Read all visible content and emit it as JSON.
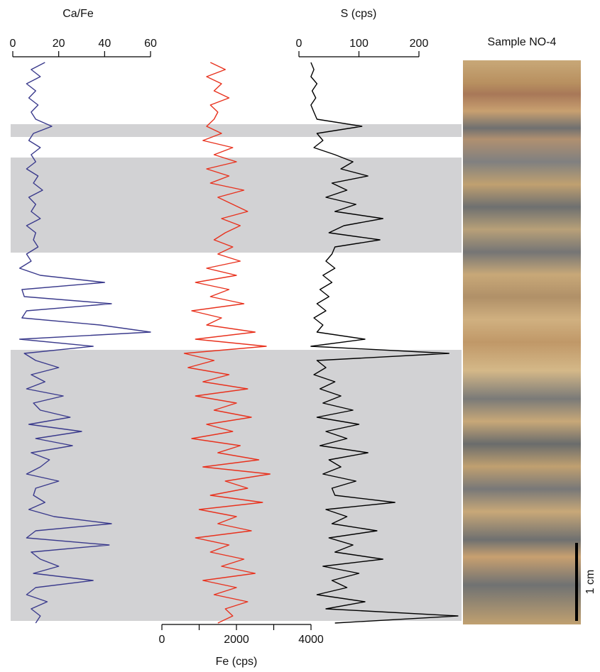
{
  "chart_data": {
    "type": "line",
    "series": [
      {
        "name": "Ca/Fe",
        "color": "#3a3a8c",
        "xlim": [
          0,
          60
        ],
        "xticks": [
          0,
          20,
          40,
          60
        ],
        "values": [
          14,
          8,
          12,
          6,
          10,
          7,
          11,
          8,
          10,
          17,
          9,
          7,
          12,
          8,
          10,
          6,
          11,
          9,
          13,
          7,
          10,
          8,
          12,
          6,
          10,
          9,
          11,
          6,
          8,
          3,
          12,
          40,
          4,
          5,
          43,
          6,
          4,
          38,
          60,
          3,
          35,
          5,
          10,
          20,
          8,
          14,
          6,
          22,
          9,
          12,
          25,
          7,
          30,
          10,
          26,
          8,
          16,
          12,
          6,
          20,
          10,
          9,
          14,
          7,
          18,
          43,
          10,
          6,
          42,
          8,
          12,
          20,
          9,
          35,
          10,
          6,
          15,
          8,
          12,
          10
        ]
      },
      {
        "name": "Fe (cps)",
        "color": "#e8321e",
        "xlim": [
          0,
          4000
        ],
        "xticks": [
          0,
          2000,
          4000
        ],
        "xminor_ticks": [
          1000,
          3000
        ],
        "values": [
          1300,
          1700,
          1200,
          1600,
          1400,
          1800,
          1300,
          1500,
          1400,
          1200,
          1600,
          1100,
          1900,
          1400,
          2000,
          1200,
          1800,
          1300,
          2200,
          1500,
          1900,
          2300,
          1600,
          2100,
          1700,
          1400,
          1900,
          1500,
          2100,
          1200,
          2000,
          900,
          1800,
          1300,
          2200,
          800,
          1600,
          1200,
          2500,
          900,
          2800,
          600,
          1400,
          700,
          1800,
          1100,
          2300,
          900,
          2000,
          1400,
          2400,
          1200,
          1900,
          800,
          2100,
          1500,
          2600,
          1100,
          2900,
          1700,
          2300,
          1300,
          2700,
          1000,
          2000,
          1500,
          2400,
          900,
          1800,
          1300,
          2200,
          1600,
          2500,
          1100,
          2000,
          1400,
          2300,
          1700,
          1900,
          1500
        ]
      },
      {
        "name": "S (cps)",
        "color": "#000000",
        "xlim": [
          0,
          200
        ],
        "xticks": [
          0,
          100,
          200
        ],
        "values": [
          20,
          25,
          20,
          30,
          22,
          28,
          20,
          25,
          30,
          105,
          30,
          40,
          25,
          60,
          90,
          70,
          115,
          55,
          80,
          45,
          95,
          60,
          140,
          75,
          50,
          135,
          60,
          55,
          45,
          60,
          40,
          55,
          35,
          50,
          30,
          45,
          25,
          40,
          30,
          110,
          20,
          250,
          30,
          45,
          25,
          60,
          35,
          70,
          40,
          90,
          30,
          100,
          45,
          80,
          35,
          115,
          50,
          70,
          40,
          95,
          55,
          60,
          160,
          45,
          80,
          55,
          130,
          50,
          90,
          60,
          140,
          40,
          100,
          55,
          80,
          30,
          110,
          45,
          265,
          60
        ]
      }
    ],
    "sample_label": "Sample NO-4",
    "scale_label": "1 cm"
  }
}
